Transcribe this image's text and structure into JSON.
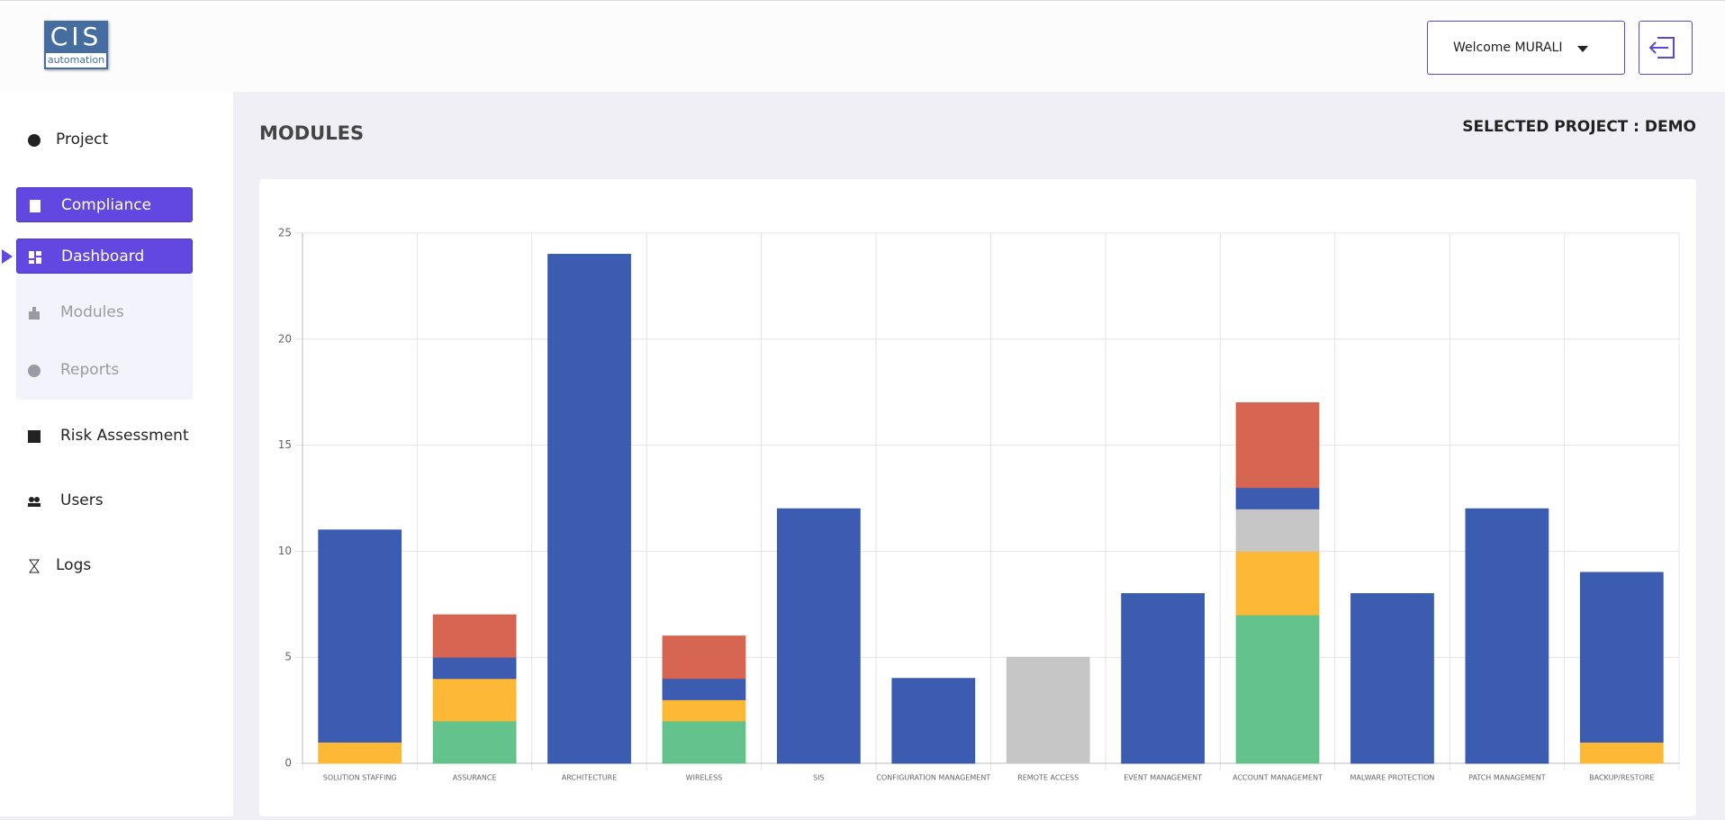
{
  "header": {
    "logo_title": "CIS",
    "logo_subtitle": "automation",
    "welcome": "Welcome MURALI"
  },
  "sidebar": {
    "items": [
      "Project",
      "Compliance",
      "Dashboard",
      "Modules",
      "Reports",
      "Risk Assessment",
      "Users",
      "Logs"
    ]
  },
  "page": {
    "title": "MODULES",
    "selected_project": "SELECTED PROJECT : DEMO"
  },
  "chart_data": {
    "type": "stacked-bar",
    "categories": [
      "SOLUTION STAFFING",
      "ASSURANCE",
      "ARCHITECTURE",
      "WIRELESS",
      "SIS",
      "CONFIGURATION MANAGEMENT",
      "REMOTE ACCESS",
      "EVENT MANAGEMENT",
      "ACCOUNT MANAGEMENT",
      "MALWARE PROTECTION",
      "PATCH MANAGEMENT",
      "BACKUP/RESTORE"
    ],
    "series": [
      {
        "color": "#5fc088",
        "values": [
          null,
          2,
          null,
          2,
          null,
          null,
          null,
          null,
          7,
          null,
          null,
          null
        ]
      },
      {
        "color": "#fdb630",
        "values": [
          1,
          2,
          null,
          1,
          null,
          null,
          null,
          null,
          3,
          null,
          null,
          1
        ]
      },
      {
        "color": "#c4c4c4",
        "values": [
          null,
          null,
          null,
          null,
          null,
          null,
          5,
          null,
          2,
          null,
          null,
          null
        ]
      },
      {
        "color": "#3557ae",
        "values": [
          10,
          1,
          24,
          1,
          12,
          4,
          null,
          8,
          1,
          8,
          12,
          8
        ]
      },
      {
        "color": "#d5604c",
        "values": [
          null,
          2,
          null,
          2,
          null,
          null,
          null,
          null,
          4,
          null,
          null,
          null
        ]
      }
    ],
    "ylim": [
      0,
      25
    ],
    "yticks": [
      0,
      5,
      10,
      15,
      20,
      25
    ],
    "grid": true
  }
}
